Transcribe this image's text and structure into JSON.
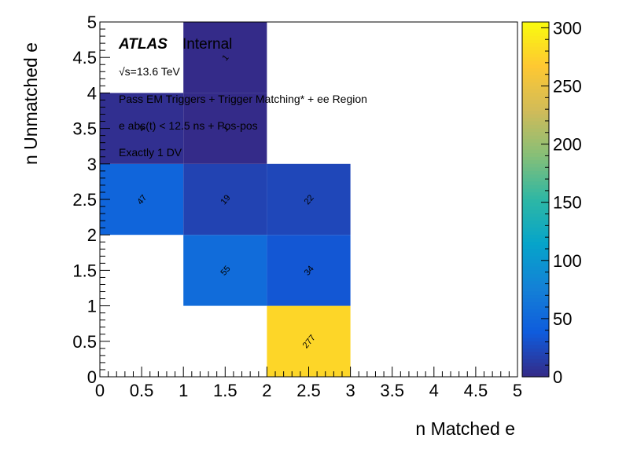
{
  "chart_data": {
    "type": "heatmap",
    "xlabel": "n Matched e",
    "ylabel": "n Unmatched e",
    "xlim": [
      0,
      5
    ],
    "ylim": [
      0,
      5
    ],
    "x_ticks": [
      "0",
      "0.5",
      "1",
      "1.5",
      "2",
      "2.5",
      "3",
      "3.5",
      "4",
      "4.5",
      "5"
    ],
    "y_ticks": [
      "0",
      "0.5",
      "1",
      "1.5",
      "2",
      "2.5",
      "3",
      "3.5",
      "4",
      "4.5",
      "5"
    ],
    "x_bin_width": 1,
    "y_bin_width": 1,
    "cells": [
      {
        "x": 2,
        "y": 0,
        "value": 277
      },
      {
        "x": 1,
        "y": 1,
        "value": 55
      },
      {
        "x": 2,
        "y": 1,
        "value": 34
      },
      {
        "x": 0,
        "y": 2,
        "value": 47
      },
      {
        "x": 1,
        "y": 2,
        "value": 19
      },
      {
        "x": 2,
        "y": 2,
        "value": 22
      },
      {
        "x": 0,
        "y": 3,
        "value": 4
      },
      {
        "x": 1,
        "y": 3,
        "value": 1
      },
      {
        "x": 1,
        "y": 4,
        "value": 1
      }
    ],
    "colorbar": {
      "min": 0,
      "max": 305,
      "ticks": [
        "0",
        "50",
        "100",
        "150",
        "200",
        "250",
        "300"
      ],
      "palette": [
        "#352a87",
        "#0f5cdd",
        "#1481d6",
        "#06a4ca",
        "#2eb7a4",
        "#87bf77",
        "#d1bb59",
        "#fec832",
        "#f9fb0e"
      ]
    },
    "annotations": {
      "atlas": "ATLAS",
      "atlas_status": "Internal",
      "energy": "√s=13.6 TeV",
      "line1": "Pass EM Triggers + Trigger Matching* + ee Region",
      "line2": "e abs(t) < 12.5 ns + Pos-pos",
      "line3": "Exactly 1 DV"
    }
  }
}
